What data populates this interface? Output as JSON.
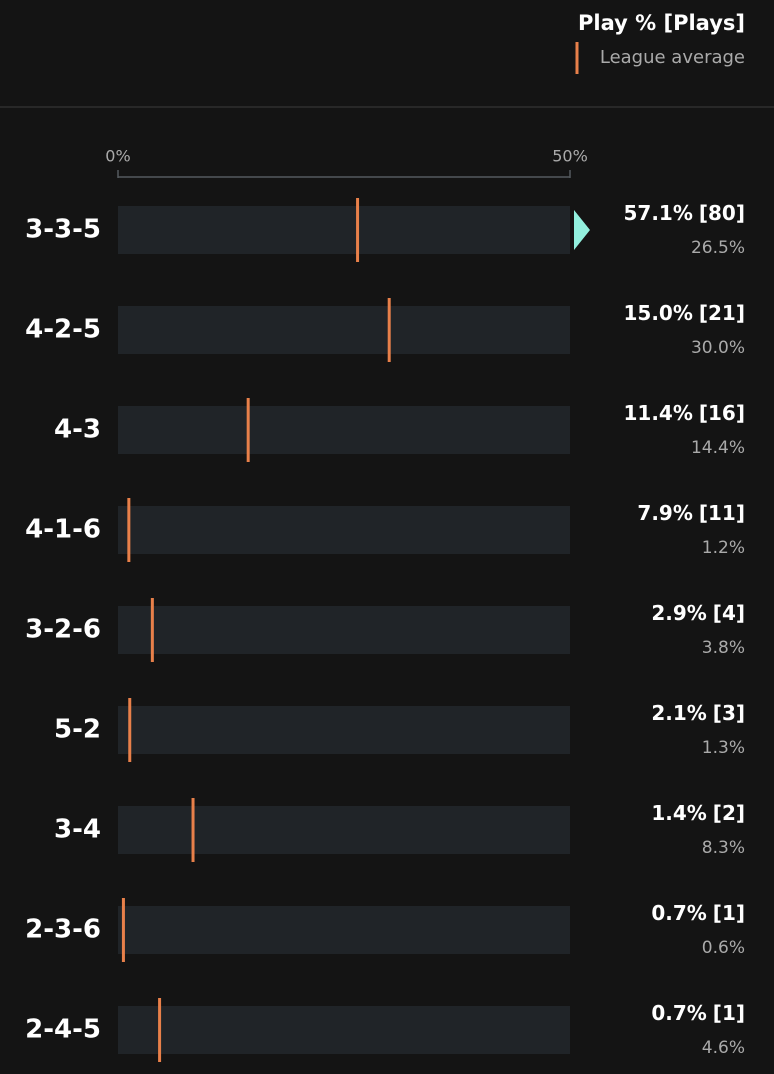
{
  "chart_data": {
    "type": "bar",
    "orientation": "horizontal",
    "title": "Play % [Plays]",
    "categories": [
      "3-3-5",
      "4-2-5",
      "4-3",
      "4-1-6",
      "3-2-6",
      "5-2",
      "3-4",
      "2-3-6",
      "2-4-5"
    ],
    "series": [
      {
        "name": "Play %",
        "color": "#92f0de",
        "values": [
          57.1,
          15.0,
          11.4,
          7.9,
          2.9,
          2.1,
          1.4,
          0.7,
          0.7
        ],
        "value_labels": [
          "57.1%",
          "15.0%",
          "11.4%",
          "7.9%",
          "2.9%",
          "2.1%",
          "1.4%",
          "0.7%",
          "0.7%"
        ]
      },
      {
        "name": "Plays",
        "values": [
          80,
          21,
          16,
          11,
          4,
          3,
          2,
          1,
          1
        ],
        "value_labels": [
          "[80]",
          "[21]",
          "[16]",
          "[11]",
          "[4]",
          "[3]",
          "[2]",
          "[1]",
          "[1]"
        ]
      },
      {
        "name": "League average",
        "color": "#e8804a",
        "values": [
          26.5,
          30.0,
          14.4,
          1.2,
          3.8,
          1.3,
          8.3,
          0.6,
          4.6
        ],
        "value_labels": [
          "26.5%",
          "30.0%",
          "14.4%",
          "1.2%",
          "3.8%",
          "1.3%",
          "8.3%",
          "0.6%",
          "4.6%"
        ]
      }
    ],
    "xlim": [
      0,
      50
    ],
    "xticks": [
      {
        "value": 0,
        "label": "0%"
      },
      {
        "value": 50,
        "label": "50%"
      }
    ],
    "track_color": "#202428"
  }
}
